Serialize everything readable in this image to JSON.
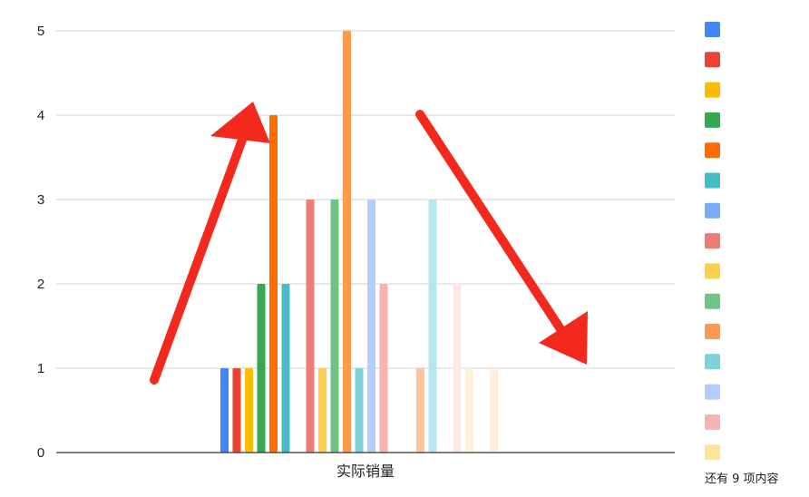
{
  "chart_data": {
    "type": "bar",
    "categories": [
      "实际销量"
    ],
    "xlabel": "实际销量",
    "ylabel": "",
    "ylim": [
      0,
      5
    ],
    "yticks": [
      "0",
      "1",
      "2",
      "3",
      "4",
      "5"
    ],
    "grid": true,
    "legend_position": "right",
    "legend_more_text": "还有 9 项内容",
    "series": [
      {
        "color": "#4285f4",
        "values": [
          1
        ]
      },
      {
        "color": "#ea4335",
        "values": [
          1
        ]
      },
      {
        "color": "#fbbc04",
        "values": [
          1
        ]
      },
      {
        "color": "#34a853",
        "values": [
          2
        ]
      },
      {
        "color": "#ff6d01",
        "values": [
          4
        ]
      },
      {
        "color": "#46bdc6",
        "values": [
          2
        ]
      },
      {
        "color": "#7baaf7",
        "values": [
          0
        ]
      },
      {
        "color": "#f07b72",
        "values": [
          3
        ]
      },
      {
        "color": "#fcd04f",
        "values": [
          1
        ]
      },
      {
        "color": "#71c287",
        "values": [
          3
        ]
      },
      {
        "color": "#ff994d",
        "values": [
          5
        ]
      },
      {
        "color": "#7ed1d7",
        "values": [
          1
        ]
      },
      {
        "color": "#b3cefb",
        "values": [
          3
        ]
      },
      {
        "color": "#f7b4ae",
        "values": [
          2
        ]
      },
      {
        "color": "#fde49b",
        "values": [
          0
        ]
      },
      {
        "color": "#aedcba",
        "values": [
          0
        ]
      },
      {
        "color": "#ffc599",
        "values": [
          1
        ]
      },
      {
        "color": "#b5e8ec",
        "values": [
          3
        ]
      },
      {
        "color": "#e1ecfd",
        "values": [
          0
        ]
      },
      {
        "color": "#fde8e6",
        "values": [
          2
        ]
      },
      {
        "color": "#fef3d7",
        "values": [
          1
        ]
      },
      {
        "color": "#dff2e4",
        "values": [
          0
        ]
      },
      {
        "color": "#ffeee0",
        "values": [
          1
        ]
      },
      {
        "color": "#e0f4f5",
        "values": [
          0
        ]
      }
    ]
  },
  "legend_visible_count": 15,
  "annotations": {
    "arrow_color": "#f4291e",
    "arrows": [
      "up-right-arrow",
      "down-right-arrow"
    ]
  }
}
